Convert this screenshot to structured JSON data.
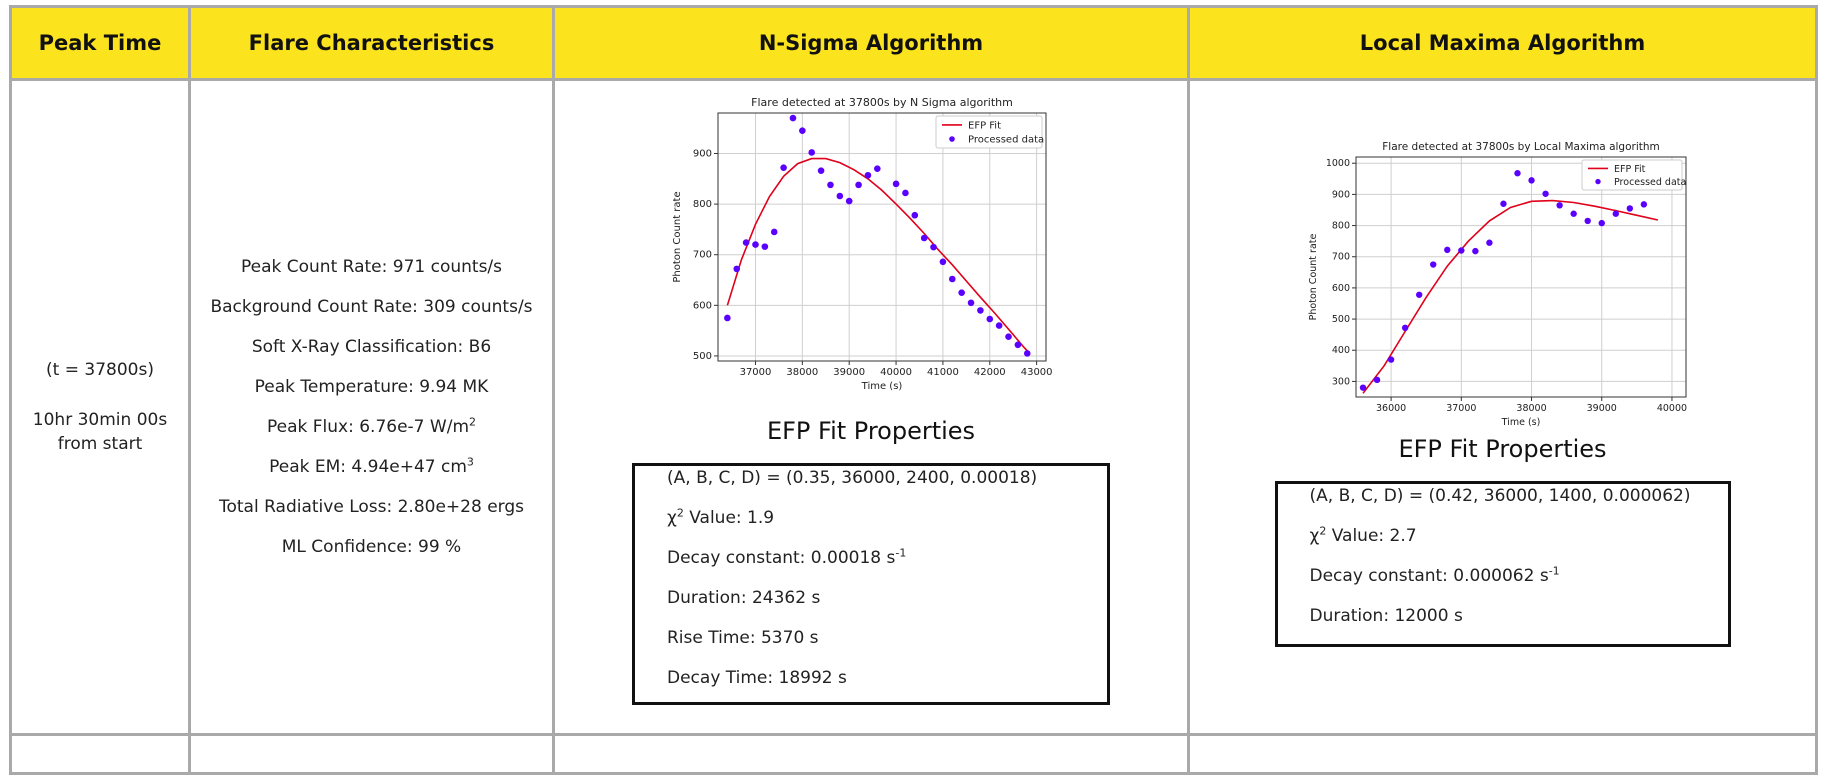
{
  "headers": {
    "peak_time": "Peak Time",
    "flare_characteristics": "Flare Characteristics",
    "nsigma": "N-Sigma Algorithm",
    "localmax": "Local Maxima Algorithm"
  },
  "peak": {
    "t": "(t = 37800s)",
    "clock": "10hr 30min 00s",
    "from_start": "from start"
  },
  "characteristics": {
    "peak_count_rate": "Peak Count Rate: 971 counts/s",
    "background_count_rate": "Background Count Rate: 309 counts/s",
    "soft_xray": "Soft X-Ray Classification: B6",
    "peak_temperature": "Peak Temperature: 9.94 MK",
    "peak_flux": "Peak Flux: 6.76e-7 W/m",
    "peak_flux_sup": "2",
    "peak_em": "Peak EM: 4.94e+47 cm",
    "peak_em_sup": "3",
    "radiative_loss": "Total Radiative Loss: 2.80e+28 ergs",
    "ml_confidence": "ML Confidence: 99 %"
  },
  "nsigma": {
    "efp_title": "EFP Fit Properties",
    "params": "(A, B, C, D) = (0.35, 36000, 2400, 0.00018)",
    "chi_sym": "χ",
    "chi_sup": "2",
    "chi_value": " Value: 1.9",
    "decay_constant": "Decay constant: 0.00018 s",
    "decay_sup": "-1",
    "duration": "Duration: 24362 s",
    "rise_time": "Rise Time: 5370 s",
    "decay_time": "Decay Time: 18992 s"
  },
  "localmax": {
    "efp_title": "EFP Fit Properties",
    "params": "(A, B, C, D) = (0.42, 36000, 1400, 0.000062)",
    "chi_sym": "χ",
    "chi_sup": "2",
    "chi_value": " Value: 2.7",
    "decay_constant": "Decay constant: 0.000062 s",
    "decay_sup": "-1",
    "duration": "Duration: 12000 s"
  },
  "chart_data": [
    {
      "type": "scatter",
      "title": "Flare detected at 37800s by N Sigma algorithm",
      "xlabel": "Time (s)",
      "ylabel": "Photon Count rate",
      "xlim": [
        36200,
        43200
      ],
      "ylim": [
        490,
        980
      ],
      "xticks": [
        37000,
        38000,
        39000,
        40000,
        41000,
        42000,
        43000
      ],
      "yticks": [
        500,
        600,
        700,
        800,
        900
      ],
      "grid": true,
      "legend": "top-right",
      "colors": {
        "fit": "#e0001a",
        "data": "#5a00ff"
      },
      "series": [
        {
          "name": "Processed data",
          "kind": "scatter",
          "x": [
            36400,
            36600,
            36800,
            37000,
            37200,
            37400,
            37600,
            37800,
            38000,
            38200,
            38400,
            38600,
            38800,
            39000,
            39200,
            39400,
            39600,
            40000,
            40200,
            40400,
            40600,
            40800,
            41000,
            41200,
            41400,
            41600,
            41800,
            42000,
            42200,
            42400,
            42600,
            42800
          ],
          "y": [
            575,
            672,
            724,
            720,
            716,
            745,
            872,
            970,
            945,
            902,
            866,
            838,
            816,
            806,
            838,
            857,
            870,
            840,
            822,
            778,
            733,
            715,
            686,
            652,
            625,
            605,
            590,
            573,
            560,
            538,
            522,
            505
          ]
        },
        {
          "name": "EFP Fit",
          "kind": "line",
          "x": [
            36400,
            36700,
            37000,
            37300,
            37600,
            37900,
            38200,
            38500,
            38800,
            39100,
            39400,
            39700,
            40000,
            40300,
            40600,
            40900,
            41200,
            41500,
            41800,
            42100,
            42400,
            42700,
            42800
          ],
          "y": [
            600,
            690,
            760,
            815,
            855,
            880,
            890,
            890,
            882,
            868,
            850,
            827,
            800,
            772,
            742,
            710,
            680,
            648,
            616,
            585,
            553,
            520,
            510
          ]
        }
      ]
    },
    {
      "type": "scatter",
      "title": "Flare detected at 37800s by Local Maxima algorithm",
      "xlabel": "Time (s)",
      "ylabel": "Photon Count rate",
      "xlim": [
        35500,
        40200
      ],
      "ylim": [
        250,
        1020
      ],
      "xticks": [
        36000,
        37000,
        38000,
        39000,
        40000
      ],
      "yticks": [
        300,
        400,
        500,
        600,
        700,
        800,
        900,
        1000
      ],
      "grid": true,
      "legend": "top-right",
      "colors": {
        "fit": "#e0001a",
        "data": "#5a00ff"
      },
      "series": [
        {
          "name": "Processed data",
          "kind": "scatter",
          "x": [
            35600,
            35800,
            36000,
            36200,
            36400,
            36600,
            36800,
            37000,
            37200,
            37400,
            37600,
            37800,
            38000,
            38200,
            38400,
            38600,
            38800,
            39000,
            39200,
            39400,
            39600
          ],
          "y": [
            280,
            305,
            370,
            472,
            578,
            675,
            722,
            720,
            718,
            745,
            870,
            968,
            945,
            902,
            865,
            838,
            815,
            808,
            838,
            855,
            868
          ]
        },
        {
          "name": "EFP Fit",
          "kind": "line",
          "x": [
            35600,
            35900,
            36200,
            36500,
            36800,
            37100,
            37400,
            37700,
            38000,
            38300,
            38600,
            38900,
            39200,
            39500,
            39800
          ],
          "y": [
            262,
            350,
            460,
            570,
            670,
            750,
            815,
            858,
            878,
            880,
            874,
            862,
            848,
            833,
            818
          ]
        }
      ]
    }
  ]
}
